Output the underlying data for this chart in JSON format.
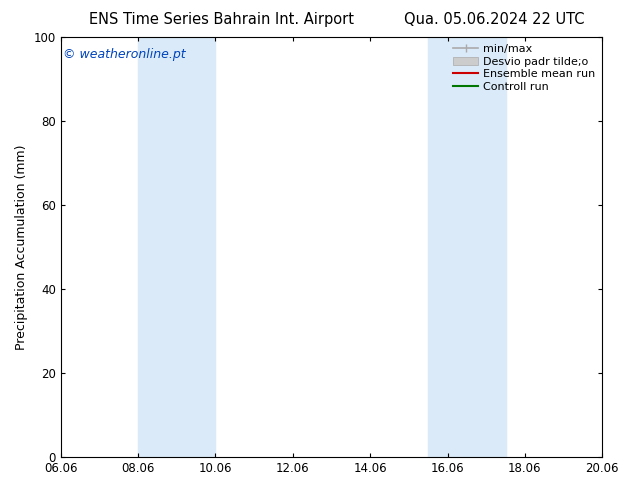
{
  "title_left": "ENS Time Series Bahrain Int. Airport",
  "title_right": "Qua. 05.06.2024 22 UTC",
  "ylabel": "Precipitation Accumulation (mm)",
  "ylim": [
    0,
    100
  ],
  "xtick_labels": [
    "06.06",
    "08.06",
    "10.06",
    "12.06",
    "14.06",
    "16.06",
    "18.06",
    "20.06"
  ],
  "xtick_positions": [
    0,
    2,
    4,
    6,
    8,
    10,
    12,
    14
  ],
  "ytick_positions": [
    0,
    20,
    40,
    60,
    80,
    100
  ],
  "shaded_regions": [
    {
      "x_start": 2,
      "x_end": 4,
      "color": "#daeaf8",
      "alpha": 1.0
    },
    {
      "x_start": 9.5,
      "x_end": 11.5,
      "color": "#daeaf8",
      "alpha": 1.0
    }
  ],
  "copyright_text": "© weatheronline.pt",
  "copyright_color": "#0044bb",
  "legend_labels": [
    "min/max",
    "Desvio padr tilde;o",
    "Ensemble mean run",
    "Controll run"
  ],
  "legend_colors": [
    "#aaaaaa",
    "#cccccc",
    "#cc0000",
    "#007700"
  ],
  "bg_color": "#ffffff",
  "plot_bg_color": "#ffffff",
  "title_fontsize": 10.5,
  "tick_fontsize": 8.5,
  "ylabel_fontsize": 9,
  "copyright_fontsize": 9,
  "legend_fontsize": 8
}
